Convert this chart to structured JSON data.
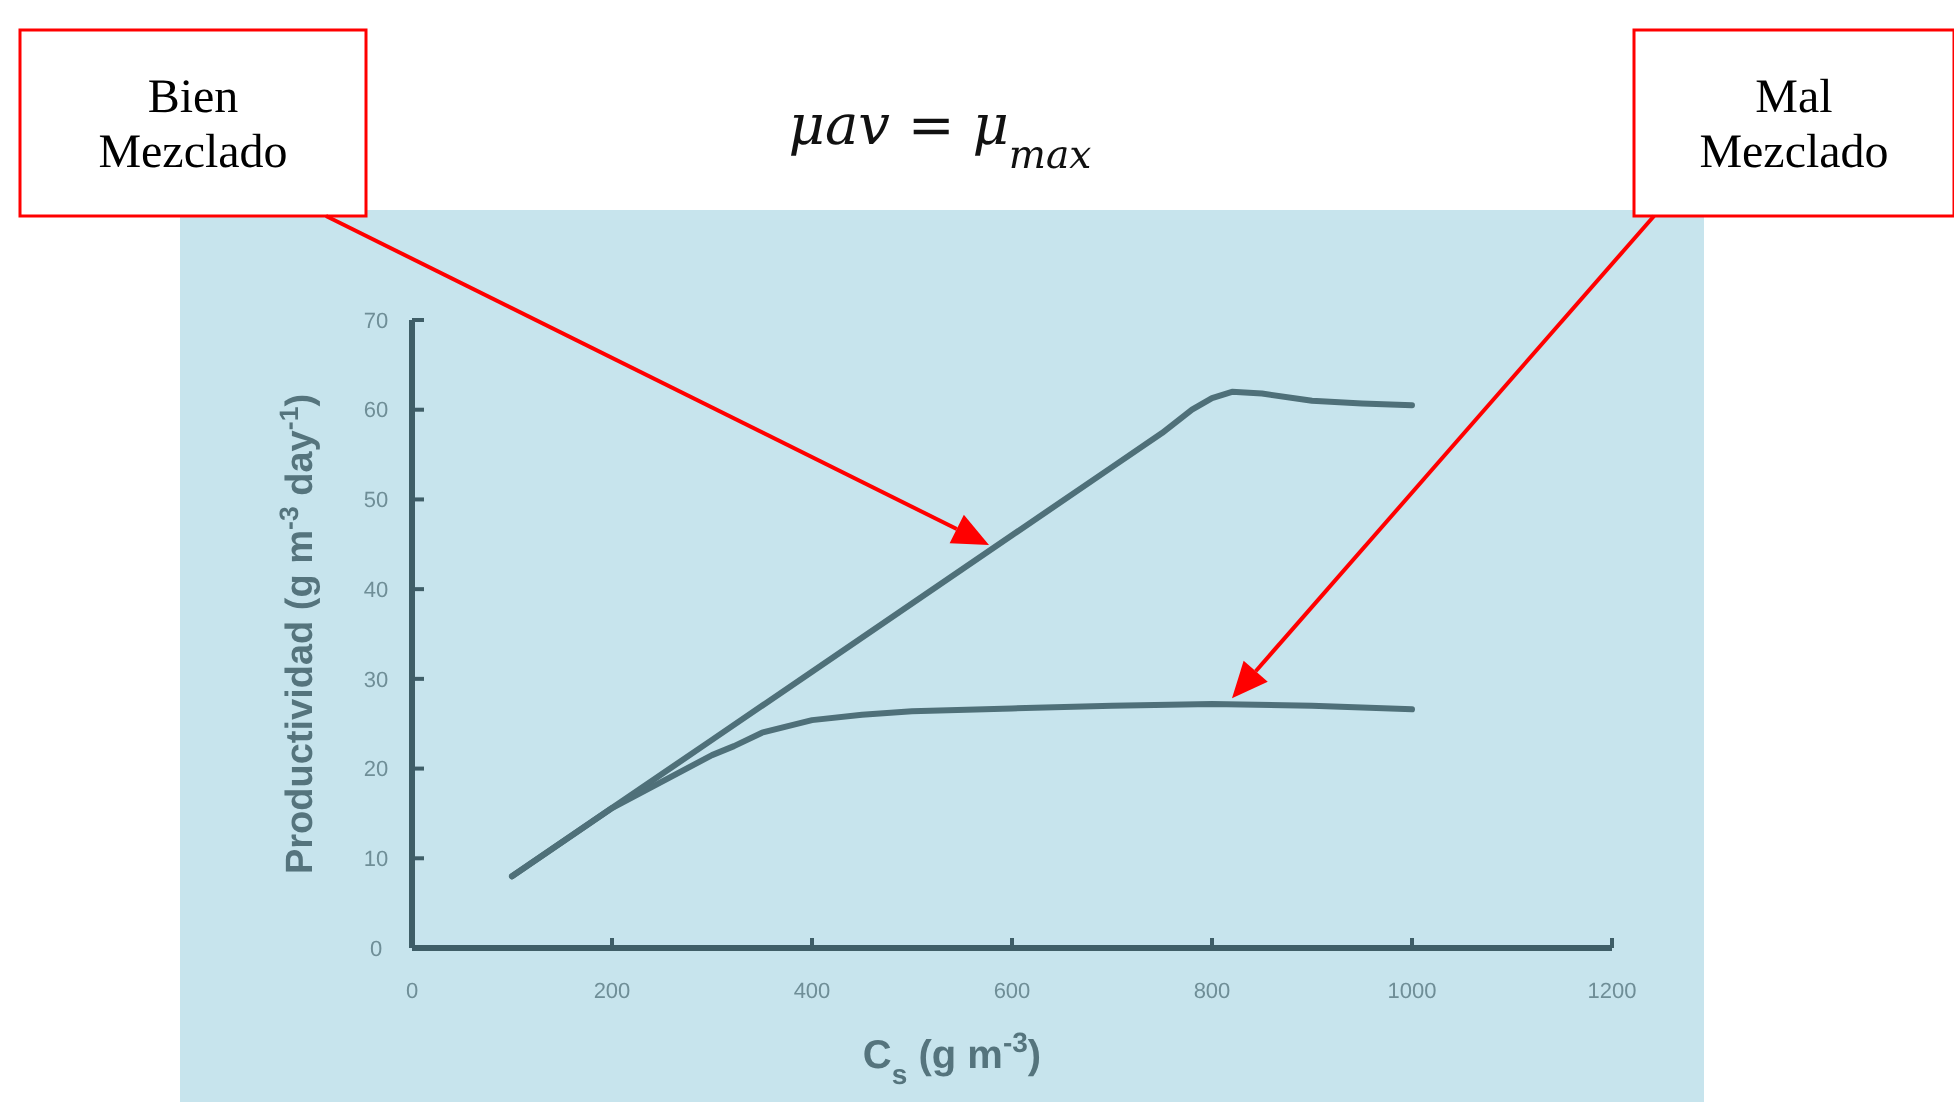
{
  "chart_data": {
    "type": "line",
    "title": "μav = μ$_{max}$",
    "xlabel": "C$_{s}$ (g m$^{-3}$)",
    "ylabel": "Productividad (g m$^{-3}$ day$^{-1}$)",
    "xlim": [
      0,
      1200
    ],
    "xticks": [
      0,
      200,
      400,
      600,
      800,
      1000,
      1200
    ],
    "ylim": [
      0,
      70
    ],
    "yticks": [
      0,
      10,
      20,
      30,
      40,
      50,
      60,
      70
    ],
    "grid": false,
    "marker": "none",
    "line_style": "solid",
    "series": [
      {
        "color": "#4f7079",
        "x": [
          100,
          200,
          300,
          400,
          500,
          600,
          700,
          750,
          780,
          800,
          820,
          850,
          900,
          950,
          1000
        ],
        "values": [
          8,
          15.6,
          23.2,
          30.8,
          38.4,
          46,
          53.6,
          57.4,
          60,
          61.3,
          62,
          61.8,
          61,
          60.7,
          60.5
        ]
      },
      {
        "color": "#4f7079",
        "x": [
          100,
          200,
          300,
          322,
          350,
          400,
          450,
          500,
          600,
          700,
          800,
          900,
          1000
        ],
        "values": [
          8,
          15.6,
          21.5,
          22.5,
          24,
          25.4,
          26,
          26.4,
          26.7,
          27,
          27.2,
          27,
          26.6
        ]
      }
    ],
    "annotations": [
      "Bien\nMezclado",
      "Mal\nMezclado"
    ]
  }
}
